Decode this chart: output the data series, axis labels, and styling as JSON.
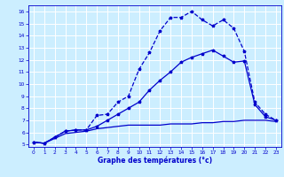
{
  "xlabel": "Graphe des températures (°c)",
  "bg_color": "#cceeff",
  "grid_color": "#aadddd",
  "line_color": "#0000cc",
  "xlim": [
    -0.5,
    23.5
  ],
  "ylim": [
    4.8,
    16.5
  ],
  "xticks": [
    0,
    1,
    2,
    3,
    4,
    5,
    6,
    7,
    8,
    9,
    10,
    11,
    12,
    13,
    14,
    15,
    16,
    17,
    18,
    19,
    20,
    21,
    22,
    23
  ],
  "yticks": [
    5,
    6,
    7,
    8,
    9,
    10,
    11,
    12,
    13,
    14,
    15,
    16
  ],
  "line1_x": [
    0,
    1,
    2,
    3,
    4,
    5,
    6,
    7,
    8,
    9,
    10,
    11,
    12,
    13,
    14,
    15,
    16,
    17,
    18,
    19,
    20,
    21,
    22,
    23
  ],
  "line1_y": [
    5.2,
    5.1,
    5.6,
    6.1,
    6.2,
    6.2,
    7.4,
    7.5,
    8.5,
    9.0,
    11.2,
    12.6,
    14.4,
    15.5,
    15.5,
    16.0,
    15.3,
    14.8,
    15.3,
    14.6,
    12.7,
    8.5,
    7.5,
    7.0
  ],
  "line2_x": [
    0,
    1,
    2,
    3,
    4,
    5,
    6,
    7,
    8,
    9,
    10,
    11,
    12,
    13,
    14,
    15,
    16,
    17,
    18,
    19,
    20,
    21,
    22,
    23
  ],
  "line2_y": [
    5.2,
    5.1,
    5.6,
    6.1,
    6.2,
    6.2,
    6.5,
    7.0,
    7.5,
    8.0,
    8.5,
    9.5,
    10.3,
    11.0,
    11.8,
    12.2,
    12.5,
    12.8,
    12.3,
    11.8,
    11.9,
    8.3,
    7.3,
    7.0
  ],
  "line3_x": [
    0,
    1,
    2,
    3,
    4,
    5,
    6,
    7,
    8,
    9,
    10,
    11,
    12,
    13,
    14,
    15,
    16,
    17,
    18,
    19,
    20,
    21,
    22,
    23
  ],
  "line3_y": [
    5.2,
    5.1,
    5.5,
    5.9,
    6.0,
    6.1,
    6.3,
    6.4,
    6.5,
    6.6,
    6.6,
    6.6,
    6.6,
    6.7,
    6.7,
    6.7,
    6.8,
    6.8,
    6.9,
    6.9,
    7.0,
    7.0,
    7.0,
    6.9
  ]
}
